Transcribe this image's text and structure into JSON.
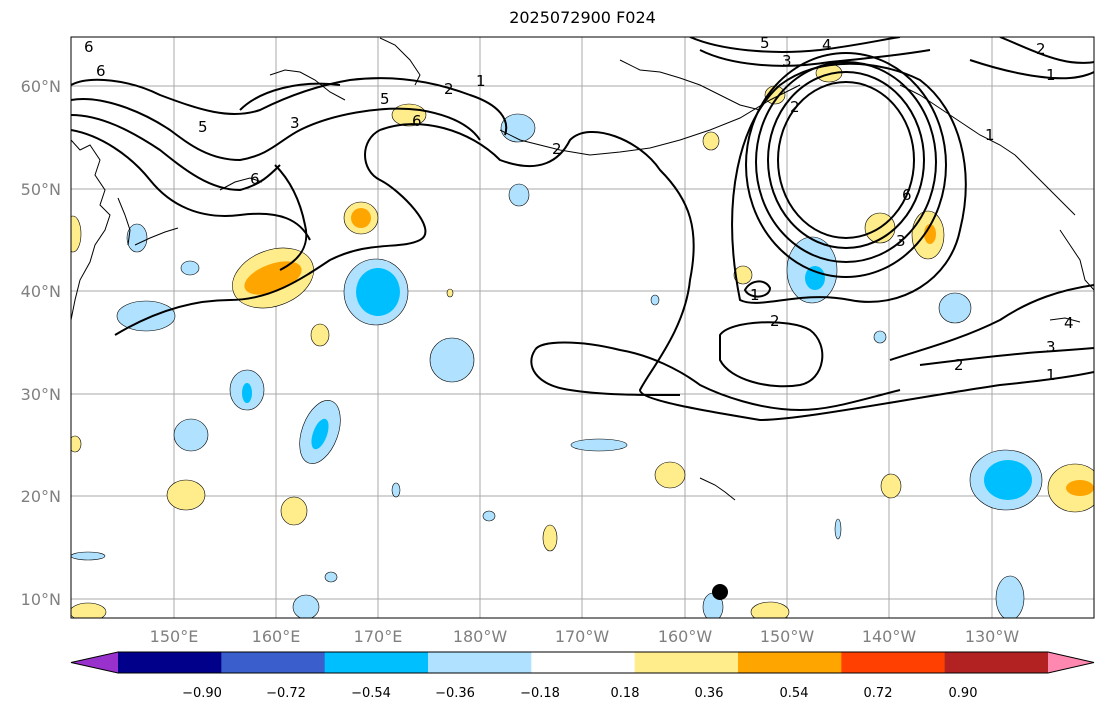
{
  "title": "2025072900 F024",
  "map": {
    "lat_labels": [
      "60°N",
      "50°N",
      "40°N",
      "30°N",
      "20°N",
      "10°N"
    ],
    "lon_labels": [
      "150°E",
      "160°E",
      "170°E",
      "180°W",
      "170°W",
      "160°W",
      "150°W",
      "140°W",
      "130°W"
    ],
    "contour_labels": [
      "6",
      "6",
      "5",
      "2",
      "1",
      "5",
      "6",
      "2",
      "5",
      "4",
      "3",
      "2",
      "1",
      "6",
      "3",
      "1",
      "2",
      "2",
      "3",
      "1",
      "6",
      "2",
      "1",
      "4",
      "3"
    ]
  },
  "colorbar": {
    "ticks": [
      "−0.90",
      "−0.72",
      "−0.54",
      "−0.36",
      "−0.18",
      "0.18",
      "0.36",
      "0.54",
      "0.72",
      "0.90"
    ],
    "colors": [
      "#9932cc",
      "#00008b",
      "#3a5fcd",
      "#00bfff",
      "#b0e2ff",
      "#ffffff",
      "#ffec8b",
      "#ffa500",
      "#ff4000",
      "#b22222",
      "#ff88b0"
    ]
  }
}
